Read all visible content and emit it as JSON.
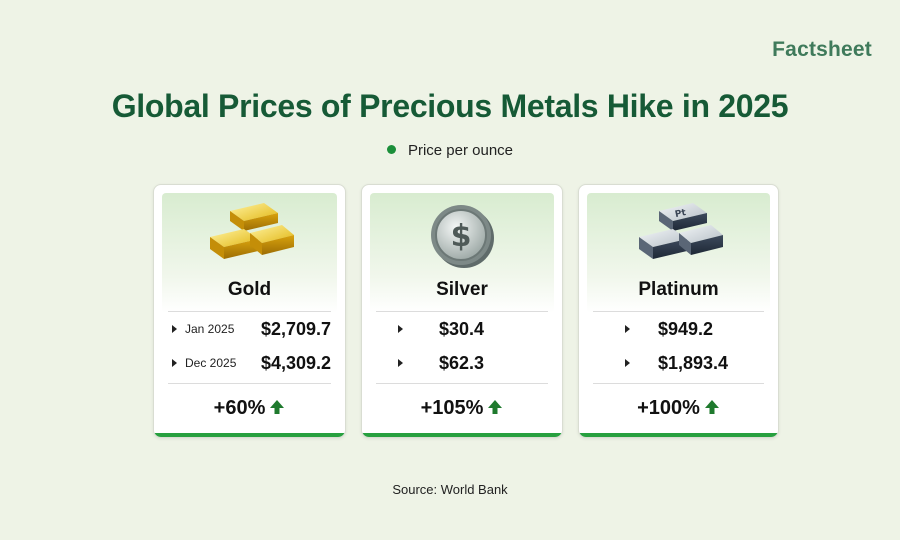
{
  "brand": "Factsheet",
  "title": "Global Prices of Precious Metals Hike in 2025",
  "legend": "Price per ounce",
  "source": "Source: World Bank",
  "accent_color": "#1b8f3a",
  "title_color": "#165a36",
  "cards": [
    {
      "name": "Gold",
      "icon": "gold-bars-icon",
      "rows": [
        {
          "period": "Jan 2025",
          "value": "$2,709.7"
        },
        {
          "period": "Dec 2025",
          "value": "$4,309.2"
        }
      ],
      "change": "+60%"
    },
    {
      "name": "Silver",
      "icon": "silver-coin-icon",
      "rows": [
        {
          "period": "",
          "value": "$30.4"
        },
        {
          "period": "",
          "value": "$62.3"
        }
      ],
      "change": "+105%"
    },
    {
      "name": "Platinum",
      "icon": "platinum-bars-icon",
      "icon_text": "Pt",
      "rows": [
        {
          "period": "",
          "value": "$949.2"
        },
        {
          "period": "",
          "value": "$1,893.4"
        }
      ],
      "change": "+100%"
    }
  ]
}
